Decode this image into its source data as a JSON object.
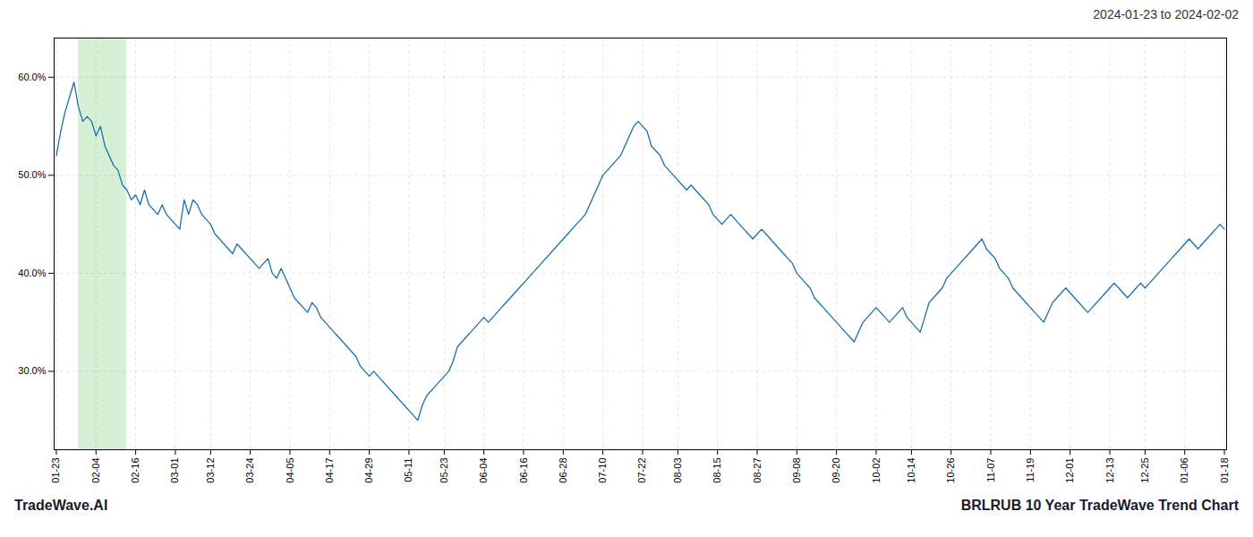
{
  "chart_data": {
    "type": "line",
    "title": "2024-01-23 to 2024-02-02",
    "annotations": [
      "TradeWave.AI",
      "BRLRUB 10 Year TradeWave Trend Chart"
    ],
    "color": "#1a6faf",
    "grid": true,
    "highlight": {
      "from": 5,
      "to": 16,
      "color": "#d6f0d6"
    },
    "ylim": [
      22,
      64
    ],
    "yticks": [
      {
        "value": 30,
        "label": "30.0%"
      },
      {
        "value": 40,
        "label": "40.0%"
      },
      {
        "value": 50,
        "label": "50.0%"
      },
      {
        "value": 60,
        "label": "60.0%"
      }
    ],
    "categories": [
      "01-23",
      null,
      null,
      null,
      null,
      null,
      null,
      null,
      null,
      "02-04",
      null,
      null,
      null,
      null,
      null,
      null,
      null,
      null,
      "02-16",
      null,
      null,
      null,
      null,
      null,
      null,
      null,
      null,
      "03-01",
      null,
      null,
      null,
      null,
      null,
      null,
      null,
      "03-12",
      null,
      null,
      null,
      null,
      null,
      null,
      null,
      null,
      "03-24",
      null,
      null,
      null,
      null,
      null,
      null,
      null,
      null,
      "04-05",
      null,
      null,
      null,
      null,
      null,
      null,
      null,
      null,
      "04-17",
      null,
      null,
      null,
      null,
      null,
      null,
      null,
      null,
      "04-29",
      null,
      null,
      null,
      null,
      null,
      null,
      null,
      null,
      "05-11",
      null,
      null,
      null,
      null,
      null,
      null,
      null,
      "05-23",
      null,
      null,
      null,
      null,
      null,
      null,
      null,
      null,
      "06-04",
      null,
      null,
      null,
      null,
      null,
      null,
      null,
      null,
      "06-16",
      null,
      null,
      null,
      null,
      null,
      null,
      null,
      null,
      "06-28",
      null,
      null,
      null,
      null,
      null,
      null,
      null,
      null,
      "07-10",
      null,
      null,
      null,
      null,
      null,
      null,
      null,
      null,
      "07-22",
      null,
      null,
      null,
      null,
      null,
      null,
      null,
      "08-03",
      null,
      null,
      null,
      null,
      null,
      null,
      null,
      null,
      "08-15",
      null,
      null,
      null,
      null,
      null,
      null,
      null,
      null,
      "08-27",
      null,
      null,
      null,
      null,
      null,
      null,
      null,
      null,
      "09-08",
      null,
      null,
      null,
      null,
      null,
      null,
      null,
      null,
      "09-20",
      null,
      null,
      null,
      null,
      null,
      null,
      null,
      null,
      "10-02",
      null,
      null,
      null,
      null,
      null,
      null,
      null,
      "10-14",
      null,
      null,
      null,
      null,
      null,
      null,
      null,
      null,
      "10-26",
      null,
      null,
      null,
      null,
      null,
      null,
      null,
      null,
      "11-07",
      null,
      null,
      null,
      null,
      null,
      null,
      null,
      null,
      "11-19",
      null,
      null,
      null,
      null,
      null,
      null,
      null,
      null,
      "12-01",
      null,
      null,
      null,
      null,
      null,
      null,
      null,
      null,
      "12-13",
      null,
      null,
      null,
      null,
      null,
      null,
      null,
      "12-25",
      null,
      null,
      null,
      null,
      null,
      null,
      null,
      null,
      "01-06",
      null,
      null,
      null,
      null,
      null,
      null,
      null,
      null,
      "01-18"
    ],
    "values": [
      52.0,
      54.5,
      56.5,
      58.0,
      59.5,
      57.0,
      55.5,
      56.0,
      55.5,
      54.0,
      55.0,
      53.0,
      52.0,
      51.0,
      50.5,
      49.0,
      48.5,
      47.5,
      48.0,
      47.0,
      48.5,
      47.0,
      46.5,
      46.0,
      47.0,
      46.0,
      45.5,
      45.0,
      44.5,
      47.5,
      46.0,
      47.5,
      47.0,
      46.0,
      45.5,
      45.0,
      44.0,
      43.5,
      43.0,
      42.5,
      42.0,
      43.0,
      42.5,
      42.0,
      41.5,
      41.0,
      40.5,
      41.0,
      41.5,
      40.0,
      39.5,
      40.5,
      39.5,
      38.5,
      37.5,
      37.0,
      36.5,
      36.0,
      37.0,
      36.5,
      35.5,
      35.0,
      34.5,
      34.0,
      33.5,
      33.0,
      32.5,
      32.0,
      31.5,
      30.5,
      30.0,
      29.5,
      30.0,
      29.5,
      29.0,
      28.5,
      28.0,
      27.5,
      27.0,
      26.5,
      26.0,
      25.5,
      25.0,
      26.5,
      27.5,
      28.0,
      28.5,
      29.0,
      29.5,
      30.0,
      31.0,
      32.5,
      33.0,
      33.5,
      34.0,
      34.5,
      35.0,
      35.5,
      35.0,
      35.5,
      36.0,
      36.5,
      37.0,
      37.5,
      38.0,
      38.5,
      39.0,
      39.5,
      40.0,
      40.5,
      41.0,
      41.5,
      42.0,
      42.5,
      43.0,
      43.5,
      44.0,
      44.5,
      45.0,
      45.5,
      46.0,
      47.0,
      48.0,
      49.0,
      50.0,
      50.5,
      51.0,
      51.5,
      52.0,
      53.0,
      54.0,
      55.0,
      55.5,
      55.0,
      54.5,
      53.0,
      52.5,
      52.0,
      51.0,
      50.5,
      50.0,
      49.5,
      49.0,
      48.5,
      49.0,
      48.5,
      48.0,
      47.5,
      47.0,
      46.0,
      45.5,
      45.0,
      45.5,
      46.0,
      45.5,
      45.0,
      44.5,
      44.0,
      43.5,
      44.0,
      44.5,
      44.0,
      43.5,
      43.0,
      42.5,
      42.0,
      41.5,
      41.0,
      40.0,
      39.5,
      39.0,
      38.5,
      37.5,
      37.0,
      36.5,
      36.0,
      35.5,
      35.0,
      34.5,
      34.0,
      33.5,
      33.0,
      34.0,
      35.0,
      35.5,
      36.0,
      36.5,
      36.0,
      35.5,
      35.0,
      35.5,
      36.0,
      36.5,
      35.5,
      35.0,
      34.5,
      34.0,
      35.5,
      37.0,
      37.5,
      38.0,
      38.5,
      39.5,
      40.0,
      40.5,
      41.0,
      41.5,
      42.0,
      42.5,
      43.0,
      43.5,
      42.5,
      42.0,
      41.5,
      40.5,
      40.0,
      39.5,
      38.5,
      38.0,
      37.5,
      37.0,
      36.5,
      36.0,
      35.5,
      35.0,
      36.0,
      37.0,
      37.5,
      38.0,
      38.5,
      38.0,
      37.5,
      37.0,
      36.5,
      36.0,
      36.5,
      37.0,
      37.5,
      38.0,
      38.5,
      39.0,
      38.5,
      38.0,
      37.5,
      38.0,
      38.5,
      39.0,
      38.5,
      39.0,
      39.5,
      40.0,
      40.5,
      41.0,
      41.5,
      42.0,
      42.5,
      43.0,
      43.5,
      43.0,
      42.5,
      43.0,
      43.5,
      44.0,
      44.5,
      45.0,
      44.5
    ]
  }
}
